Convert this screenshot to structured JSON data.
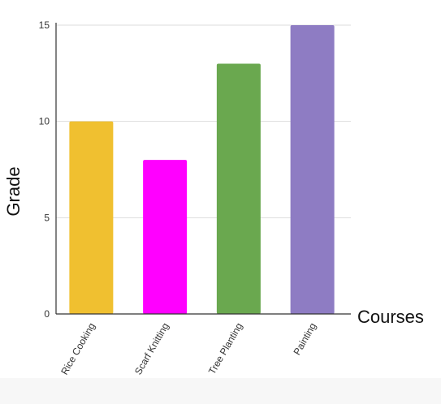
{
  "chart_data": {
    "type": "bar",
    "categories": [
      "Rice Cooking",
      "Scarf Knitting",
      "Tree Planting",
      "Painting"
    ],
    "values": [
      10,
      8,
      13,
      15
    ],
    "xlabel": "Courses",
    "ylabel": "Grade",
    "ylim": [
      0,
      15
    ],
    "yticks": [
      0,
      5,
      10,
      15
    ],
    "grid": true,
    "legend": "none",
    "colors": [
      "#f0c030",
      "#ff00ff",
      "#6aa84f",
      "#8e7cc3"
    ]
  }
}
